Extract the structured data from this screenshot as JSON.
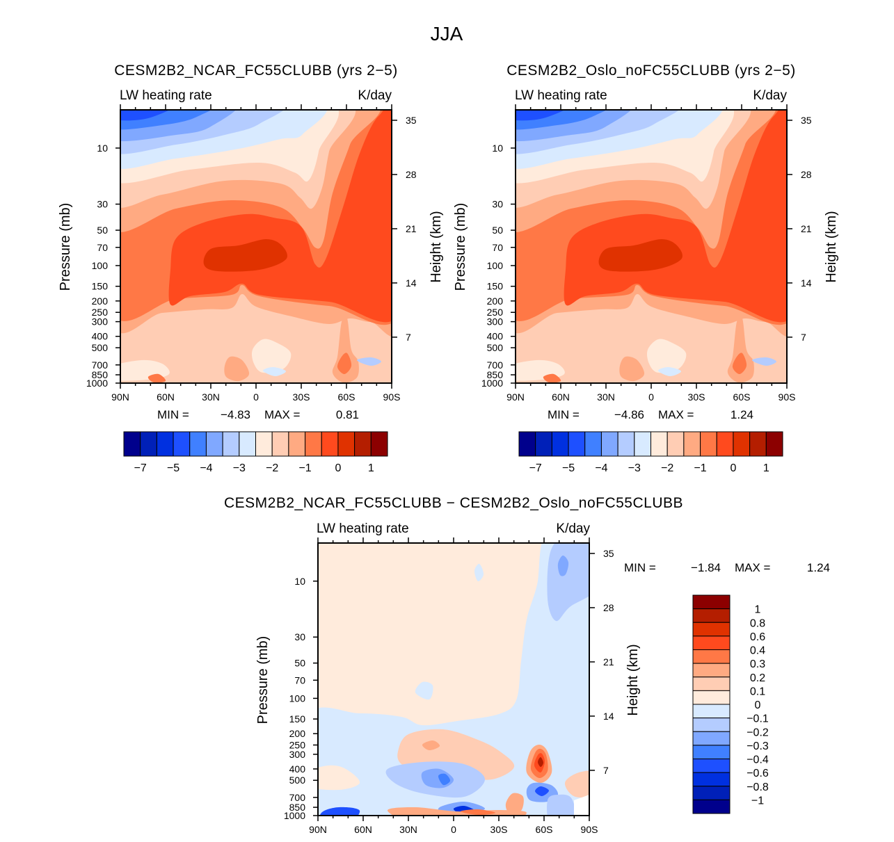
{
  "figure": {
    "title": "JJA"
  },
  "chart_data": [
    {
      "type": "contour",
      "title": "CESM2B2_NCAR_FC55CLUBB (yrs 2-5)",
      "left_label": "LW heating rate",
      "right_label": "K/day",
      "ylabel": "Pressure (mb)",
      "ylabel_right": "Height (km)",
      "x_ticks": [
        "90N",
        "60N",
        "30N",
        "0",
        "30S",
        "60S",
        "90S"
      ],
      "x_values": [
        90,
        60,
        30,
        0,
        -30,
        -60,
        -90
      ],
      "y_ticks": [
        10,
        30,
        50,
        70,
        100,
        150,
        200,
        250,
        300,
        400,
        500,
        700,
        850,
        1000
      ],
      "height_ticks": [
        35,
        28,
        21,
        14,
        7
      ],
      "min_label": "MIN =",
      "min": "-4.83",
      "max_label": "MAX =",
      "max": "0.81",
      "colorbar": {
        "orientation": "horizontal",
        "colors": [
          "#00008C",
          "#0020B8",
          "#0030E0",
          "#1E50FF",
          "#4080FF",
          "#80A8FF",
          "#B4CCFF",
          "#D8EAFF",
          "#FFEBDC",
          "#FFCDB4",
          "#FFAA82",
          "#FF7846",
          "#FF4A1E",
          "#E03200",
          "#B41E00",
          "#8C0000"
        ],
        "labels": [
          "-7",
          "-5",
          "-4",
          "-3",
          "-2",
          "-1",
          "0",
          "1"
        ]
      }
    },
    {
      "type": "contour",
      "title": "CESM2B2_Oslo_noFC55CLUBB (yrs 2-5)",
      "left_label": "LW heating rate",
      "right_label": "K/day",
      "ylabel": "Pressure (mb)",
      "ylabel_right": "Height (km)",
      "x_ticks": [
        "90N",
        "60N",
        "30N",
        "0",
        "30S",
        "60S",
        "90S"
      ],
      "x_values": [
        90,
        60,
        30,
        0,
        -30,
        -60,
        -90
      ],
      "y_ticks": [
        10,
        30,
        50,
        70,
        100,
        150,
        200,
        250,
        300,
        400,
        500,
        700,
        850,
        1000
      ],
      "height_ticks": [
        35,
        28,
        21,
        14,
        7
      ],
      "min_label": "MIN =",
      "min": "-4.86",
      "max_label": "MAX =",
      "max": "1.24",
      "colorbar": {
        "orientation": "horizontal",
        "colors": [
          "#00008C",
          "#0020B8",
          "#0030E0",
          "#1E50FF",
          "#4080FF",
          "#80A8FF",
          "#B4CCFF",
          "#D8EAFF",
          "#FFEBDC",
          "#FFCDB4",
          "#FFAA82",
          "#FF7846",
          "#FF4A1E",
          "#E03200",
          "#B41E00",
          "#8C0000"
        ],
        "labels": [
          "-7",
          "-5",
          "-4",
          "-3",
          "-2",
          "-1",
          "0",
          "1"
        ]
      }
    },
    {
      "type": "contour",
      "title": "CESM2B2_NCAR_FC55CLUBB - CESM2B2_Oslo_noFC55CLUBB",
      "left_label": "LW heating rate",
      "right_label": "K/day",
      "ylabel": "Pressure (mb)",
      "ylabel_right": "Height (km)",
      "x_ticks": [
        "90N",
        "60N",
        "30N",
        "0",
        "30S",
        "60S",
        "90S"
      ],
      "x_values": [
        90,
        60,
        30,
        0,
        -30,
        -60,
        -90
      ],
      "y_ticks": [
        10,
        30,
        50,
        70,
        100,
        150,
        200,
        250,
        300,
        400,
        500,
        700,
        850,
        1000
      ],
      "height_ticks": [
        35,
        28,
        21,
        14,
        7
      ],
      "min_label": "MIN =",
      "min": "-1.84",
      "max_label": "MAX =",
      "max": "1.24",
      "colorbar": {
        "orientation": "vertical",
        "colors": [
          "#8C0000",
          "#B41E00",
          "#E03200",
          "#FF4A1E",
          "#FF7846",
          "#FFAA82",
          "#FFCDB4",
          "#FFEBDC",
          "#D8EAFF",
          "#B4CCFF",
          "#80A8FF",
          "#4080FF",
          "#1E50FF",
          "#0030E0",
          "#0020B8",
          "#00008C"
        ],
        "labels": [
          "1",
          "0.8",
          "0.6",
          "0.4",
          "0.3",
          "0.2",
          "0.1",
          "0",
          "-0.1",
          "-0.2",
          "-0.3",
          "-0.4",
          "-0.6",
          "-0.8",
          "-1"
        ]
      }
    }
  ]
}
